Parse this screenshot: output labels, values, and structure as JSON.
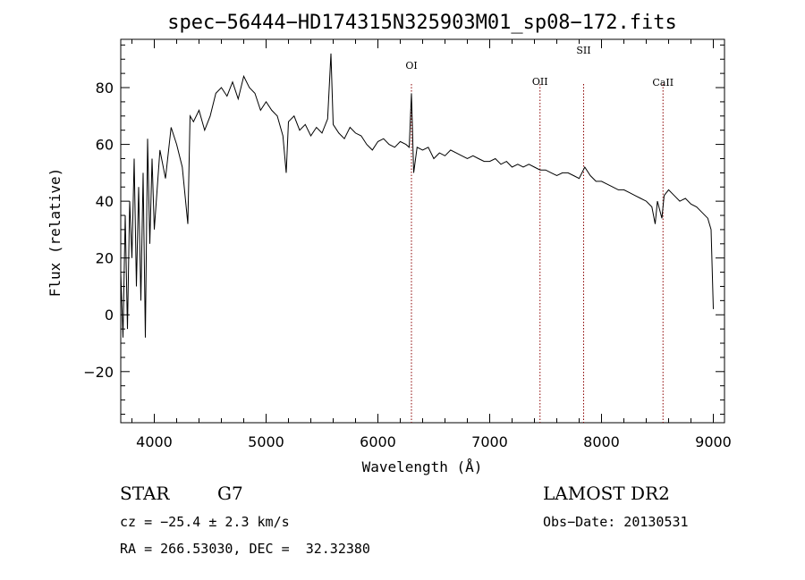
{
  "chart_data": {
    "type": "line",
    "title": "spec−56444−HD174315N325903M01_sp08−172.fits",
    "xlabel": "Wavelength (Å)",
    "ylabel": "Flux (relative)",
    "xlim": [
      3700,
      9100
    ],
    "ylim": [
      -38,
      97
    ],
    "xticks": [
      4000,
      5000,
      6000,
      7000,
      8000,
      9000
    ],
    "yticks": [
      -20,
      0,
      20,
      40,
      60,
      80
    ],
    "tick_labels_y": [
      "−20",
      "0",
      "20",
      "40",
      "60",
      "80"
    ],
    "grid": false,
    "spectrum": {
      "x": [
        3700,
        3720,
        3740,
        3760,
        3780,
        3800,
        3820,
        3840,
        3860,
        3880,
        3900,
        3920,
        3940,
        3960,
        3980,
        4000,
        4050,
        4100,
        4150,
        4200,
        4250,
        4300,
        4320,
        4350,
        4400,
        4450,
        4500,
        4550,
        4600,
        4650,
        4700,
        4750,
        4800,
        4850,
        4900,
        4950,
        5000,
        5050,
        5100,
        5150,
        5180,
        5200,
        5250,
        5300,
        5350,
        5400,
        5450,
        5500,
        5550,
        5580,
        5600,
        5650,
        5700,
        5750,
        5800,
        5850,
        5900,
        5950,
        6000,
        6050,
        6100,
        6150,
        6200,
        6250,
        6280,
        6300,
        6320,
        6350,
        6400,
        6450,
        6500,
        6550,
        6600,
        6650,
        6700,
        6750,
        6800,
        6850,
        6900,
        6950,
        7000,
        7050,
        7100,
        7150,
        7200,
        7250,
        7300,
        7350,
        7400,
        7450,
        7500,
        7550,
        7600,
        7650,
        7700,
        7750,
        7800,
        7850,
        7900,
        7950,
        8000,
        8050,
        8100,
        8150,
        8200,
        8250,
        8300,
        8350,
        8400,
        8450,
        8480,
        8500,
        8540,
        8560,
        8600,
        8650,
        8700,
        8750,
        8800,
        8850,
        8900,
        8950,
        8980,
        9000
      ],
      "y": [
        15,
        -8,
        35,
        -5,
        40,
        20,
        55,
        10,
        45,
        5,
        50,
        -8,
        62,
        25,
        55,
        30,
        58,
        48,
        66,
        60,
        52,
        32,
        70,
        68,
        72,
        65,
        70,
        78,
        80,
        77,
        82,
        76,
        84,
        80,
        78,
        72,
        75,
        72,
        70,
        63,
        50,
        68,
        70,
        65,
        67,
        63,
        66,
        64,
        69,
        92,
        67,
        64,
        62,
        66,
        64,
        63,
        60,
        58,
        61,
        62,
        60,
        59,
        61,
        60,
        59,
        78,
        50,
        59,
        58,
        59,
        55,
        57,
        56,
        58,
        57,
        56,
        55,
        56,
        55,
        54,
        54,
        55,
        53,
        54,
        52,
        53,
        52,
        53,
        52,
        51,
        51,
        50,
        49,
        50,
        50,
        49,
        48,
        52,
        49,
        47,
        47,
        46,
        45,
        44,
        44,
        43,
        42,
        41,
        40,
        38,
        32,
        40,
        34,
        42,
        44,
        42,
        40,
        41,
        39,
        38,
        36,
        34,
        30,
        2
      ]
    },
    "lines": [
      {
        "name": "OI",
        "x": 6300
      },
      {
        "name": "OII",
        "x": 7450
      },
      {
        "name": "SII",
        "x": 7840
      },
      {
        "name": "CaII",
        "x": 8550
      }
    ]
  },
  "footer": {
    "object": "STAR",
    "subclass": "G7",
    "survey": "LAMOST DR2",
    "cz": "cz = −25.4 ± 2.3 km/s",
    "obs_date": "Obs−Date: 20130531",
    "coords": "RA = 266.53030, DEC =  32.32380"
  }
}
